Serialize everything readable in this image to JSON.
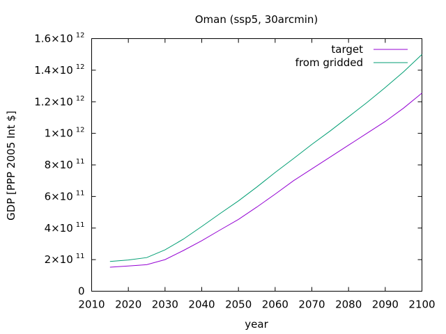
{
  "chart_data": {
    "type": "line",
    "title": "Oman (ssp5, 30arcmin)",
    "xlabel": "year",
    "ylabel": "GDP [PPP 2005 Int $]",
    "xlim": [
      2010,
      2100
    ],
    "ylim": [
      0,
      1600000000000
    ],
    "grid": false,
    "legend_position": "top-right",
    "x_ticks": [
      2010,
      2020,
      2030,
      2040,
      2050,
      2060,
      2070,
      2080,
      2090,
      2100
    ],
    "x_tick_labels": [
      "2010",
      "2020",
      "2030",
      "2040",
      "2050",
      "2060",
      "2070",
      "2080",
      "2090",
      "2100"
    ],
    "y_ticks": [
      {
        "value": 0,
        "mant": "0",
        "exp": ""
      },
      {
        "value": 200000000000,
        "mant": "2×10",
        "exp": "11"
      },
      {
        "value": 400000000000,
        "mant": "4×10",
        "exp": "11"
      },
      {
        "value": 600000000000,
        "mant": "6×10",
        "exp": "11"
      },
      {
        "value": 800000000000,
        "mant": "8×10",
        "exp": "11"
      },
      {
        "value": 1000000000000,
        "mant": "1×10",
        "exp": "12"
      },
      {
        "value": 1200000000000,
        "mant": "1.2×10",
        "exp": "12"
      },
      {
        "value": 1400000000000,
        "mant": "1.4×10",
        "exp": "12"
      },
      {
        "value": 1600000000000,
        "mant": "1.6×10",
        "exp": "12"
      }
    ],
    "x": [
      2015,
      2020,
      2025,
      2030,
      2035,
      2040,
      2045,
      2050,
      2055,
      2060,
      2065,
      2070,
      2075,
      2080,
      2085,
      2090,
      2095,
      2100
    ],
    "series": [
      {
        "name": "target",
        "color": "#9400d3",
        "values": [
          152000000000,
          160000000000,
          168000000000,
          200000000000,
          258000000000,
          320000000000,
          388000000000,
          455000000000,
          533000000000,
          615000000000,
          700000000000,
          775000000000,
          850000000000,
          925000000000,
          1000000000000,
          1075000000000,
          1160000000000,
          1255000000000
        ]
      },
      {
        "name": "from gridded",
        "color": "#009e73",
        "values": [
          188000000000,
          198000000000,
          213000000000,
          262000000000,
          330000000000,
          410000000000,
          492000000000,
          572000000000,
          660000000000,
          752000000000,
          840000000000,
          930000000000,
          1015000000000,
          1105000000000,
          1195000000000,
          1290000000000,
          1390000000000,
          1500000000000
        ]
      }
    ]
  }
}
